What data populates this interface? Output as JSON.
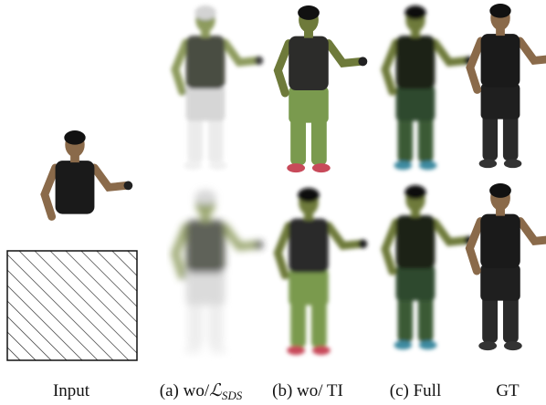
{
  "captions": [
    {
      "text": "Input"
    },
    {
      "text": "(a) wo/",
      "symbol": "ℒ",
      "subscript": "SDS"
    },
    {
      "text": "(b) wo/ TI"
    },
    {
      "text": "(c) Full"
    },
    {
      "text": "GT"
    }
  ]
}
